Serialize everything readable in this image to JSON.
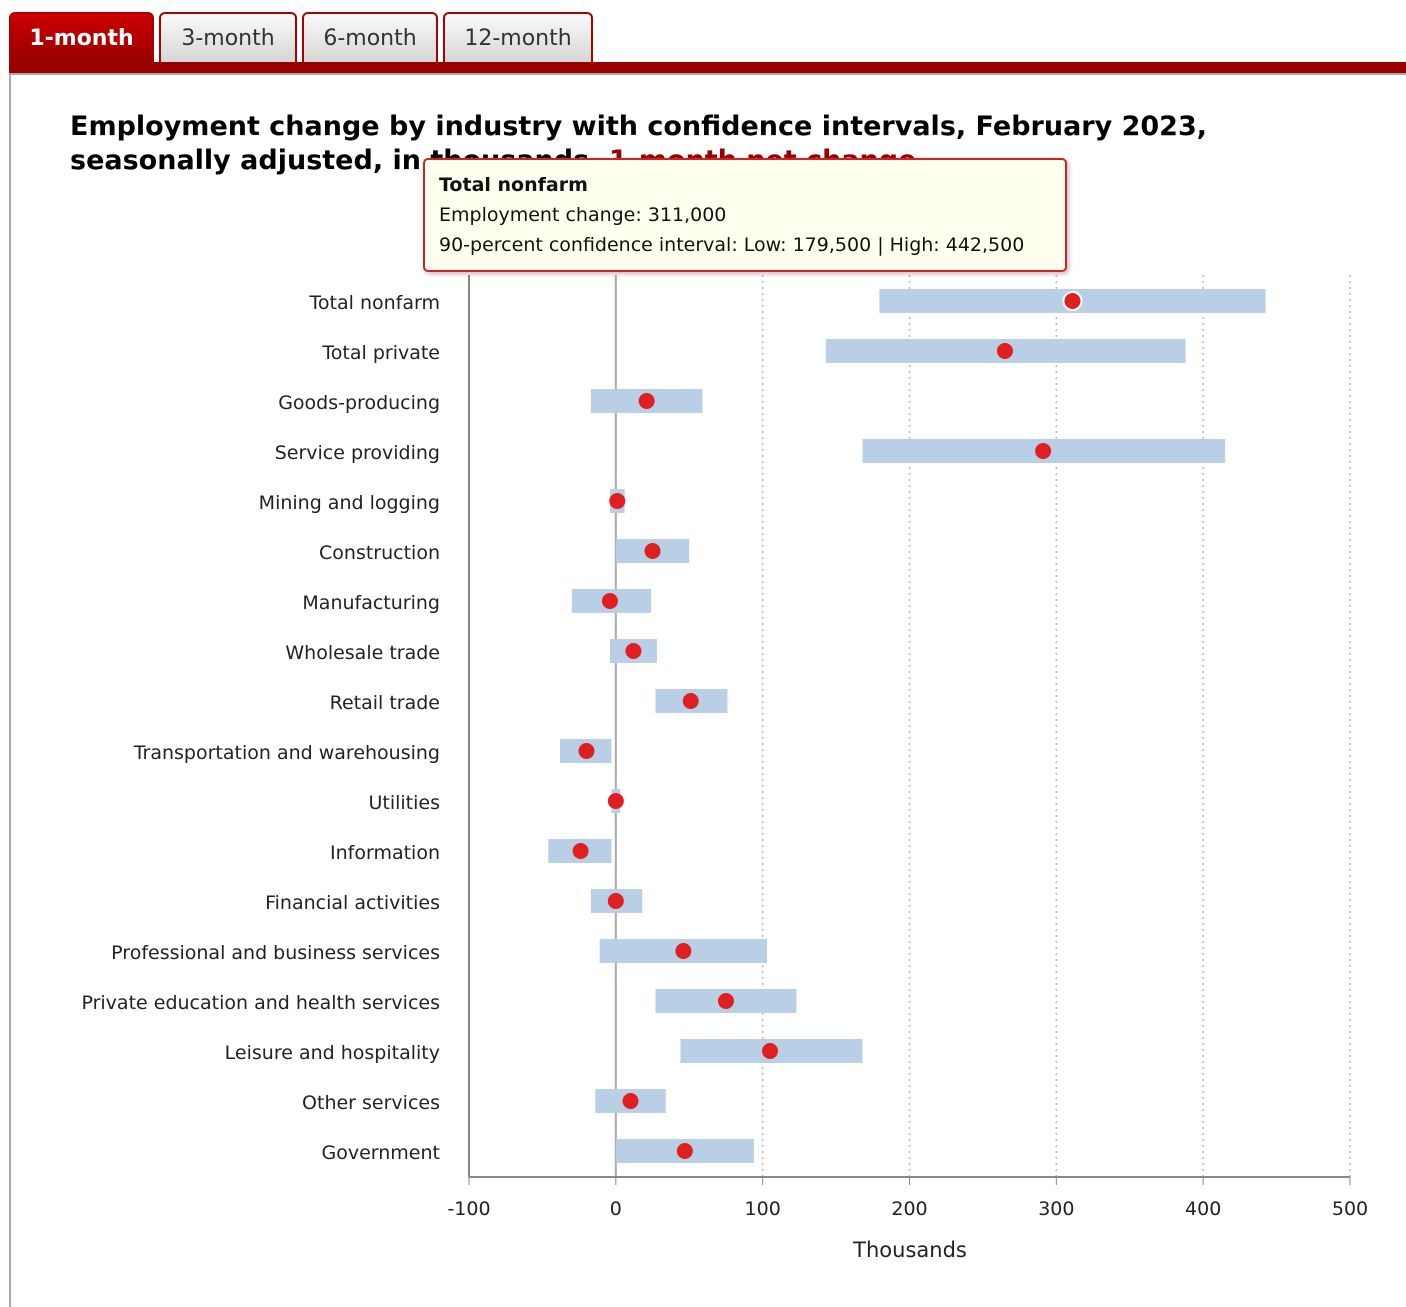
{
  "tabs": [
    {
      "label": "1-month",
      "active": true
    },
    {
      "label": "3-month",
      "active": false
    },
    {
      "label": "6-month",
      "active": false
    },
    {
      "label": "12-month",
      "active": false
    }
  ],
  "title": {
    "main": "Employment change by industry with confidence intervals, February 2023, seasonally adjusted, in thousands, ",
    "highlight": "1-month net change"
  },
  "tooltip": {
    "name": "Total nonfarm",
    "change": "Employment change: 311,000",
    "interval": "90-percent confidence interval: Low: 179,500 | High: 442,500"
  },
  "colors": {
    "accent": "#990000",
    "interval": "#b8cfe6",
    "point": "#e02020"
  },
  "chart_data": {
    "type": "dot-interval",
    "xlabel": "Thousands",
    "xlim": [
      -100,
      500
    ],
    "xticks": [
      -100,
      0,
      100,
      200,
      300,
      400,
      500
    ],
    "grid": "vertical dotted",
    "categories": [
      "Total nonfarm",
      "Total private",
      "Goods-producing",
      "Service providing",
      "Mining and logging",
      "Construction",
      "Manufacturing",
      "Wholesale trade",
      "Retail trade",
      "Transportation and warehousing",
      "Utilities",
      "Information",
      "Financial activities",
      "Professional and business services",
      "Private education and health services",
      "Leisure and hospitality",
      "Other services",
      "Government"
    ],
    "values": [
      311,
      265,
      21,
      291,
      1,
      25,
      -4,
      12,
      51,
      -20,
      0,
      -24,
      0,
      46,
      75,
      105,
      10,
      47
    ],
    "low": [
      179.5,
      143,
      -17,
      168,
      -4,
      0,
      -30,
      -4,
      27,
      -38,
      -3,
      -46,
      -17,
      -11,
      27,
      44,
      -14,
      0
    ],
    "high": [
      442.5,
      388,
      59,
      415,
      6,
      50,
      24,
      28,
      76,
      -3,
      3,
      -3,
      18,
      103,
      123,
      168,
      34,
      94
    ]
  }
}
